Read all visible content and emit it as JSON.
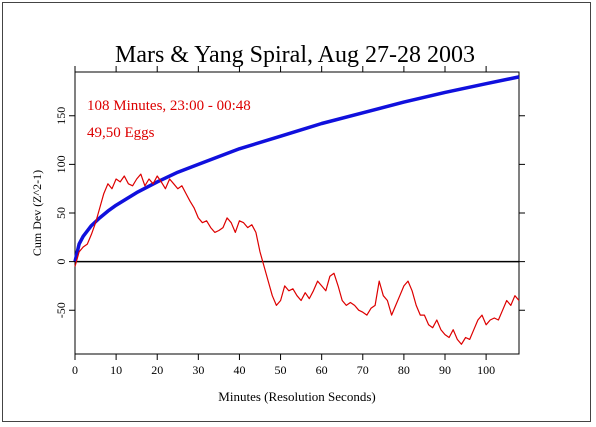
{
  "chart_data": {
    "type": "line",
    "title": "Mars & Yang Spiral, Aug 27-28 2003",
    "xlabel": "Minutes (Resolution Seconds)",
    "ylabel": "Cum Dev (Z^2-1)",
    "xlim": [
      0,
      108
    ],
    "ylim": [
      -95,
      195
    ],
    "x_ticks": [
      0,
      10,
      20,
      30,
      40,
      50,
      60,
      70,
      80,
      90,
      100
    ],
    "y_ticks": [
      -50,
      0,
      50,
      100,
      150
    ],
    "grid": false,
    "annotations": [
      "108 Minutes, 23:00 - 00:48",
      "49,50 Eggs"
    ],
    "reference_line": {
      "y": 0,
      "color": "#000000"
    },
    "series": [
      {
        "color": "#1010dd",
        "style": "probability-envelope",
        "x": [
          0,
          1,
          2,
          4,
          6,
          8,
          10,
          15,
          20,
          25,
          30,
          40,
          50,
          60,
          70,
          80,
          90,
          100,
          108
        ],
        "values": [
          0,
          18,
          26,
          37,
          45,
          52,
          58,
          71,
          82,
          92,
          100,
          116,
          129,
          142,
          153,
          164,
          174,
          183,
          190
        ]
      },
      {
        "color": "#dd0000",
        "style": "random-walk",
        "x": [
          0,
          1,
          2,
          3,
          4,
          5,
          6,
          7,
          8,
          9,
          10,
          11,
          12,
          13,
          14,
          15,
          16,
          17,
          18,
          19,
          20,
          21,
          22,
          23,
          24,
          25,
          26,
          27,
          28,
          29,
          30,
          31,
          32,
          33,
          34,
          35,
          36,
          37,
          38,
          39,
          40,
          41,
          42,
          43,
          44,
          45,
          46,
          47,
          48,
          49,
          50,
          51,
          52,
          53,
          54,
          55,
          56,
          57,
          58,
          59,
          60,
          61,
          62,
          63,
          64,
          65,
          66,
          67,
          68,
          69,
          70,
          71,
          72,
          73,
          74,
          75,
          76,
          77,
          78,
          79,
          80,
          81,
          82,
          83,
          84,
          85,
          86,
          87,
          88,
          89,
          90,
          91,
          92,
          93,
          94,
          95,
          96,
          97,
          98,
          99,
          100,
          101,
          102,
          103,
          104,
          105,
          106,
          107,
          108
        ],
        "values": [
          -5,
          10,
          15,
          18,
          28,
          40,
          55,
          70,
          80,
          75,
          85,
          82,
          88,
          80,
          78,
          85,
          90,
          78,
          85,
          80,
          88,
          82,
          75,
          85,
          80,
          75,
          78,
          70,
          62,
          55,
          45,
          40,
          42,
          35,
          30,
          32,
          35,
          45,
          40,
          30,
          42,
          40,
          35,
          38,
          30,
          10,
          -5,
          -20,
          -35,
          -45,
          -40,
          -25,
          -30,
          -28,
          -35,
          -40,
          -32,
          -38,
          -30,
          -20,
          -25,
          -30,
          -15,
          -12,
          -25,
          -40,
          -45,
          -42,
          -45,
          -50,
          -52,
          -55,
          -48,
          -45,
          -20,
          -35,
          -40,
          -55,
          -45,
          -35,
          -25,
          -20,
          -30,
          -45,
          -55,
          -55,
          -65,
          -68,
          -60,
          -70,
          -75,
          -78,
          -70,
          -80,
          -85,
          -78,
          -80,
          -70,
          -60,
          -55,
          -65,
          -60,
          -58,
          -60,
          -50,
          -40,
          -45,
          -35,
          -40
        ]
      }
    ]
  }
}
